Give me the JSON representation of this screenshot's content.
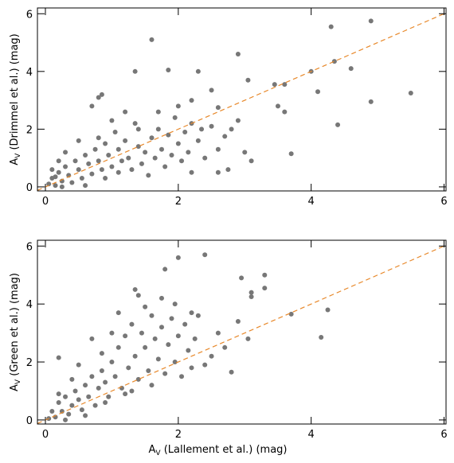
{
  "chart_data": [
    {
      "type": "scatter",
      "color": "#777777",
      "identity_line": true,
      "identity_color": "#e8892b",
      "ylabel": {
        "main": "A",
        "sub": "V",
        "rest": " (Drimmel et al.) (mag)"
      },
      "xlim": [
        -0.12,
        6.03
      ],
      "ylim": [
        -0.14,
        6.2
      ],
      "xticks": [
        0,
        2,
        4,
        6
      ],
      "yticks": [
        0,
        2,
        4,
        6
      ],
      "x": [
        0.05,
        0.1,
        0.15,
        0.2,
        0.25,
        0.3,
        0.35,
        0.4,
        0.45,
        0.5,
        0.55,
        0.6,
        0.65,
        0.7,
        0.75,
        0.8,
        0.85,
        0.9,
        0.95,
        1.0,
        1.05,
        1.1,
        1.15,
        1.2,
        1.25,
        1.3,
        1.35,
        1.4,
        1.45,
        1.5,
        1.55,
        1.6,
        1.65,
        1.7,
        1.75,
        1.8,
        1.85,
        1.9,
        1.95,
        2.0,
        2.05,
        2.1,
        2.15,
        2.2,
        2.3,
        2.4,
        2.5,
        0.1,
        0.2,
        0.3,
        0.15,
        0.25,
        0.5,
        0.6,
        1.0,
        1.2,
        1.4,
        0.9,
        1.1,
        0.8,
        1.7,
        2.0,
        2.2,
        2.35,
        2.6,
        2.8,
        1.6,
        4.9,
        4.3,
        2.9,
        4.35,
        4.6,
        4.0,
        1.35,
        1.85,
        2.3,
        3.05,
        3.45,
        3.6,
        4.1,
        5.5,
        4.9,
        3.5,
        3.6,
        2.9,
        4.4,
        3.7,
        2.5,
        2.6,
        2.2,
        0.85,
        0.8,
        0.7,
        2.7,
        3.1,
        2.75,
        2.6,
        3.0
      ],
      "values": [
        0.1,
        0.3,
        0.05,
        0.5,
        0.2,
        0.7,
        0.4,
        0.15,
        0.9,
        0.6,
        0.3,
        1.1,
        0.8,
        0.45,
        1.3,
        0.9,
        0.6,
        1.5,
        1.1,
        0.7,
        1.9,
        1.3,
        0.9,
        1.6,
        1.0,
        0.6,
        2.2,
        1.4,
        0.8,
        1.2,
        0.4,
        1.7,
        1.0,
        2.0,
        1.3,
        0.7,
        1.8,
        1.1,
        2.4,
        1.5,
        0.9,
        1.9,
        1.2,
        0.5,
        1.6,
        1.0,
        2.1,
        0.6,
        0.9,
        1.2,
        0.35,
        0.0,
        1.6,
        0.05,
        2.3,
        2.6,
        2.0,
        0.3,
        0.5,
        1.7,
        2.6,
        2.8,
        2.2,
        2.0,
        1.3,
        2.0,
        5.1,
        5.75,
        5.55,
        4.6,
        4.35,
        4.1,
        4.0,
        4.0,
        4.05,
        4.0,
        3.7,
        3.55,
        3.55,
        3.3,
        3.25,
        2.95,
        2.8,
        2.6,
        2.3,
        2.15,
        1.15,
        3.35,
        2.75,
        3.0,
        3.2,
        3.1,
        2.8,
        1.75,
        0.9,
        0.6,
        0.5,
        1.2
      ]
    },
    {
      "type": "scatter",
      "color": "#777777",
      "identity_line": true,
      "identity_color": "#e8892b",
      "ylabel": {
        "main": "A",
        "sub": "V",
        "rest": " (Green et al.) (mag)"
      },
      "xlabel": {
        "main": "A",
        "sub": "V",
        "rest": " (Lallement et al.) (mag)"
      },
      "xlim": [
        -0.12,
        6.03
      ],
      "ylim": [
        -0.14,
        6.2
      ],
      "xticks": [
        0,
        2,
        4,
        6
      ],
      "yticks": [
        0,
        2,
        4,
        6
      ],
      "x": [
        0.05,
        0.1,
        0.15,
        0.2,
        0.25,
        0.3,
        0.35,
        0.4,
        0.45,
        0.5,
        0.55,
        0.6,
        0.65,
        0.7,
        0.75,
        0.8,
        0.85,
        0.9,
        0.95,
        1.0,
        1.05,
        1.1,
        1.15,
        1.2,
        1.25,
        1.3,
        1.35,
        1.4,
        1.45,
        1.5,
        1.55,
        1.6,
        1.65,
        1.7,
        1.75,
        1.8,
        1.85,
        1.9,
        1.95,
        2.0,
        2.05,
        2.1,
        2.15,
        2.2,
        2.25,
        2.4,
        0.3,
        0.6,
        0.9,
        1.2,
        0.2,
        0.4,
        0.7,
        1.0,
        1.3,
        1.6,
        1.1,
        1.5,
        0.5,
        0.85,
        2.4,
        2.0,
        1.8,
        3.3,
        3.3,
        2.95,
        3.1,
        3.1,
        4.25,
        4.15,
        3.7,
        3.05,
        2.8,
        0.2,
        1.35,
        1.4,
        1.75,
        1.95,
        2.2,
        2.3,
        2.6,
        2.7,
        2.5,
        2.9
      ],
      "values": [
        0.05,
        0.3,
        0.1,
        0.6,
        0.3,
        0.8,
        0.2,
        0.5,
        1.0,
        0.7,
        0.35,
        1.2,
        0.8,
        1.5,
        0.5,
        1.1,
        1.7,
        1.3,
        0.8,
        2.0,
        1.5,
        2.5,
        1.1,
        2.9,
        1.8,
        3.3,
        2.2,
        1.4,
        3.0,
        2.5,
        1.7,
        3.6,
        2.8,
        2.1,
        3.2,
        1.6,
        2.6,
        3.5,
        2.0,
        2.9,
        1.5,
        3.3,
        2.4,
        1.8,
        2.8,
        1.9,
        0.0,
        0.15,
        0.6,
        0.9,
        0.9,
        1.4,
        2.8,
        3.0,
        1.0,
        1.2,
        3.7,
        3.9,
        1.9,
        2.3,
        5.7,
        5.6,
        5.2,
        5.0,
        4.55,
        4.9,
        4.4,
        4.25,
        3.8,
        2.85,
        3.65,
        2.8,
        1.65,
        2.15,
        4.5,
        4.3,
        4.2,
        4.0,
        3.7,
        3.6,
        3.0,
        2.5,
        2.2,
        3.4
      ]
    }
  ]
}
